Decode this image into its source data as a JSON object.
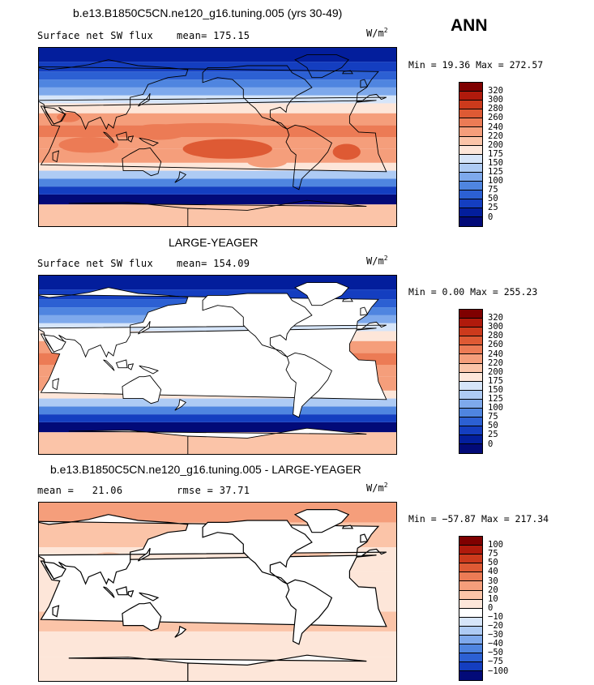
{
  "season": "ANN",
  "panels": [
    {
      "title": "b.e13.B1850C5CN.ne120_g16.tuning.005 (yrs 30-49)",
      "left_label": "Surface net SW flux",
      "stat_label": "mean=",
      "stat_value": "175.15",
      "units_base": "W/m",
      "units_exp": "2",
      "minmax": "Min =  19.36 Max = 272.57",
      "masked_land": false,
      "scale": "abs",
      "colorbar": {
        "labels": [
          "320",
          "300",
          "280",
          "260",
          "240",
          "220",
          "200",
          "175",
          "150",
          "125",
          "100",
          "75",
          "50",
          "25",
          "0"
        ],
        "colors": [
          "#7f0000",
          "#b01a0c",
          "#cc3a1c",
          "#de5a34",
          "#ec7b55",
          "#f59e7b",
          "#fbc4a8",
          "#fde6d9",
          "#d6e5f9",
          "#aecbf4",
          "#7ea9ec",
          "#4f85e0",
          "#2c60d3",
          "#143ec0",
          "#031e9c",
          "#020a78"
        ]
      }
    },
    {
      "title": "LARGE-YEAGER",
      "left_label": "Surface net SW flux",
      "stat_label": "mean=",
      "stat_value": "154.09",
      "units_base": "W/m",
      "units_exp": "2",
      "minmax": "Min =   0.00 Max = 255.23",
      "masked_land": true,
      "scale": "abs",
      "colorbar": {
        "labels": [
          "320",
          "300",
          "280",
          "260",
          "240",
          "220",
          "200",
          "175",
          "150",
          "125",
          "100",
          "75",
          "50",
          "25",
          "0"
        ],
        "colors": [
          "#7f0000",
          "#b01a0c",
          "#cc3a1c",
          "#de5a34",
          "#ec7b55",
          "#f59e7b",
          "#fbc4a8",
          "#fde6d9",
          "#d6e5f9",
          "#aecbf4",
          "#7ea9ec",
          "#4f85e0",
          "#2c60d3",
          "#143ec0",
          "#031e9c",
          "#020a78"
        ]
      }
    },
    {
      "title": "b.e13.B1850C5CN.ne120_g16.tuning.005 - LARGE-YEAGER",
      "left_label": "mean =   21.06",
      "stat_label": "rmse =",
      "stat_value": "37.71",
      "units_base": "W/m",
      "units_exp": "2",
      "minmax": "Min = −57.87 Max = 217.34",
      "masked_land": true,
      "scale": "diff",
      "colorbar": {
        "labels": [
          "100",
          "75",
          "50",
          "40",
          "30",
          "20",
          "10",
          "0",
          "−10",
          "−20",
          "−30",
          "−40",
          "−50",
          "−75",
          "−100"
        ],
        "colors": [
          "#7f0000",
          "#b01a0c",
          "#cc3a1c",
          "#de5a34",
          "#ec7b55",
          "#f59e7b",
          "#fbc4a8",
          "#fde6d9",
          "#ffffff",
          "#d6e5f9",
          "#aecbf4",
          "#7ea9ec",
          "#4f85e0",
          "#2c60d3",
          "#143ec0",
          "#020a78"
        ]
      }
    }
  ],
  "chart_data": [
    {
      "type": "heatmap",
      "title": "b.e13.B1850C5CN.ne120_g16.tuning.005 (yrs 30-49)",
      "variable": "Surface net SW flux",
      "units": "W/m2",
      "mean": 175.15,
      "min": 19.36,
      "max": 272.57,
      "contour_levels": [
        0,
        25,
        50,
        75,
        100,
        125,
        150,
        175,
        200,
        220,
        240,
        260,
        280,
        300,
        320
      ]
    },
    {
      "type": "heatmap",
      "title": "LARGE-YEAGER",
      "variable": "Surface net SW flux",
      "units": "W/m2",
      "mean": 154.09,
      "min": 0.0,
      "max": 255.23,
      "contour_levels": [
        0,
        25,
        50,
        75,
        100,
        125,
        150,
        175,
        200,
        220,
        240,
        260,
        280,
        300,
        320
      ]
    },
    {
      "type": "heatmap",
      "title": "b.e13.B1850C5CN.ne120_g16.tuning.005 - LARGE-YEAGER",
      "units": "W/m2",
      "mean": 21.06,
      "rmse": 37.71,
      "min": -57.87,
      "max": 217.34,
      "contour_levels": [
        -100,
        -75,
        -50,
        -40,
        -30,
        -20,
        -10,
        0,
        10,
        20,
        30,
        40,
        50,
        75,
        100
      ]
    }
  ]
}
